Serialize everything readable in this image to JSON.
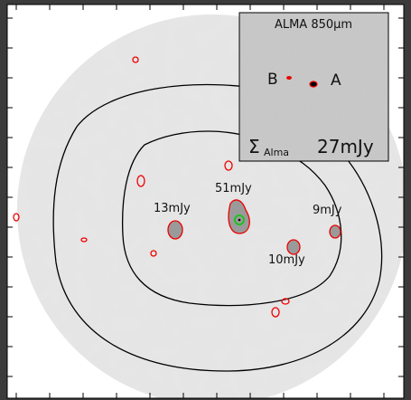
{
  "main": {
    "labels": [
      "51mJy",
      "13mJy",
      "9mJy",
      "10mJy"
    ]
  },
  "inset": {
    "title": "ALMA 850μm",
    "source_b": "B",
    "source_a": "A",
    "sigma": "Σ",
    "subscript": "Alma",
    "flux": "27mJy"
  }
}
